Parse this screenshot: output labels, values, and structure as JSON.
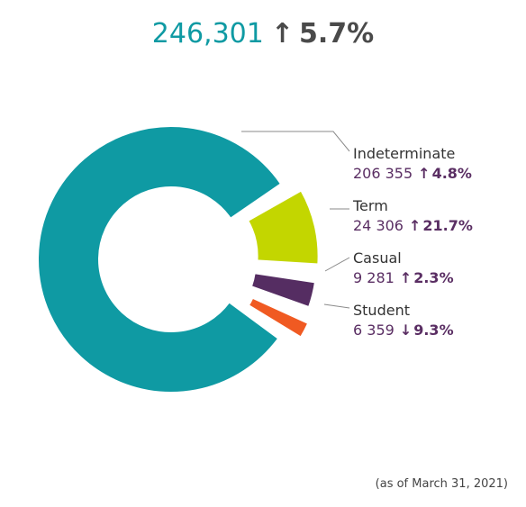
{
  "header": {
    "total": "246,301",
    "arrow": "↑",
    "change": "5.7%"
  },
  "footnote": "(as of March 31, 2021)",
  "chart_data": {
    "type": "pie",
    "variant": "donut",
    "categories": [
      "Indeterminate",
      "Term",
      "Casual",
      "Student"
    ],
    "values": [
      206355,
      24306,
      9281,
      6359
    ],
    "value_labels": [
      "206 355",
      "24 306",
      "9 281",
      "6 359"
    ],
    "change_direction": [
      "up",
      "up",
      "up",
      "down"
    ],
    "change_arrows": [
      "↑",
      "↑",
      "↑",
      "↓"
    ],
    "change_labels": [
      "4.8%",
      "21.7%",
      "2.3%",
      "9.3%"
    ],
    "colors": [
      "#0f9aa3",
      "#c3d600",
      "#552d62",
      "#f05a22"
    ],
    "exploded": [
      "Term",
      "Casual",
      "Student"
    ],
    "total": 246301,
    "legend": "right"
  }
}
